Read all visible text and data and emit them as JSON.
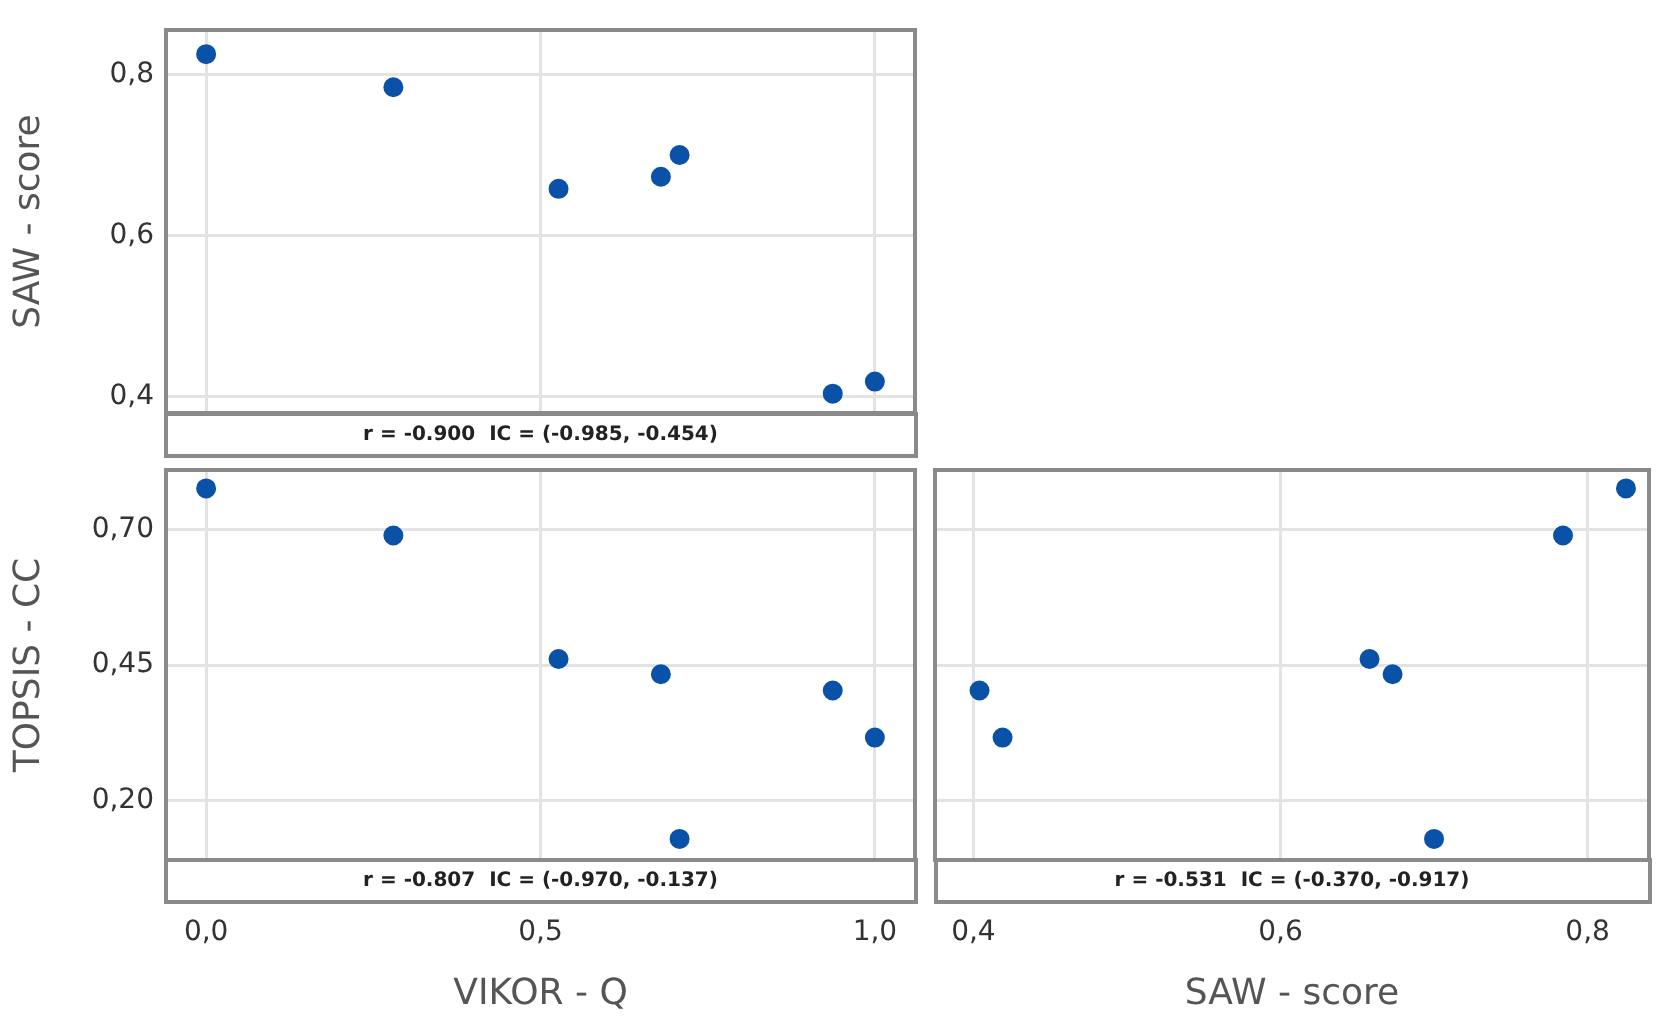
{
  "chart_data": [
    {
      "type": "scatter",
      "ylabel": "SAW - score",
      "xlim": [
        -0.06,
        1.06
      ],
      "ylim": [
        0.38,
        0.855
      ],
      "xticks": [
        {
          "value": 0,
          "label": null
        },
        {
          "value": 0.5,
          "label": null
        },
        {
          "value": 1,
          "label": null
        }
      ],
      "yticks": [
        {
          "value": 0.4,
          "label": "0,4"
        },
        {
          "value": 0.6,
          "label": "0,6"
        },
        {
          "value": 0.8,
          "label": "0,8"
        }
      ],
      "series": [
        {
          "color": "#0a52a8",
          "x": [
            0.0,
            0.28,
            0.527,
            0.68,
            0.708,
            0.937,
            1.0
          ],
          "values": [
            0.825,
            0.784,
            0.658,
            0.673,
            0.7,
            0.404,
            0.419
          ]
        }
      ],
      "grid": true,
      "marker": "circle",
      "tick_labels": "y",
      "annotations": [
        "r = -0.900  IC = (-0.985, -0.454)"
      ]
    },
    {
      "type": "scatter",
      "xlabel": "VIKOR - Q",
      "ylabel": "TOPSIS - CC",
      "xlim": [
        -0.06,
        1.06
      ],
      "ylim": [
        0.09,
        0.81
      ],
      "xticks": [
        {
          "value": 0,
          "label": "0,0"
        },
        {
          "value": 0.5,
          "label": "0,5"
        },
        {
          "value": 1,
          "label": "1,0"
        }
      ],
      "yticks": [
        {
          "value": 0.2,
          "label": "0,20"
        },
        {
          "value": 0.45,
          "label": "0,45"
        },
        {
          "value": 0.7,
          "label": "0,70"
        }
      ],
      "series": [
        {
          "color": "#0a52a8",
          "x": [
            0.0,
            0.28,
            0.527,
            0.68,
            0.708,
            0.937,
            1.0
          ],
          "values": [
            0.776,
            0.689,
            0.461,
            0.433,
            0.129,
            0.403,
            0.316
          ]
        }
      ],
      "grid": true,
      "marker": "circle",
      "annotations": [
        "r = -0.807  IC = (-0.970, -0.137)"
      ]
    },
    {
      "type": "scatter",
      "xlabel": "SAW - score",
      "xlim": [
        0.375,
        0.84
      ],
      "ylim": [
        0.09,
        0.81
      ],
      "xticks": [
        {
          "value": 0.4,
          "label": "0,4"
        },
        {
          "value": 0.6,
          "label": "0,6"
        },
        {
          "value": 0.8,
          "label": "0,8"
        }
      ],
      "yticks": [
        {
          "value": 0.2,
          "label": null
        },
        {
          "value": 0.45,
          "label": null
        },
        {
          "value": 0.7,
          "label": null
        }
      ],
      "series": [
        {
          "color": "#0a52a8",
          "x": [
            0.825,
            0.784,
            0.658,
            0.673,
            0.7,
            0.404,
            0.419
          ],
          "values": [
            0.776,
            0.689,
            0.461,
            0.433,
            0.129,
            0.403,
            0.316
          ]
        }
      ],
      "grid": true,
      "marker": "circle",
      "tick_labels": "x",
      "annotations": [
        "r = -0.531  IC = (-0.370, -0.917)"
      ]
    }
  ]
}
